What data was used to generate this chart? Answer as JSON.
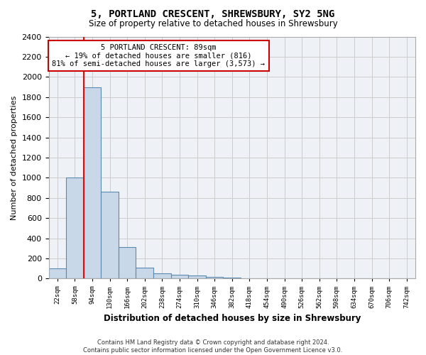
{
  "title": "5, PORTLAND CRESCENT, SHREWSBURY, SY2 5NG",
  "subtitle": "Size of property relative to detached houses in Shrewsbury",
  "xlabel": "Distribution of detached houses by size in Shrewsbury",
  "ylabel": "Number of detached properties",
  "annotation_text": "5 PORTLAND CRESCENT: 89sqm\n← 19% of detached houses are smaller (816)\n81% of semi-detached houses are larger (3,573) →",
  "footer_line1": "Contains HM Land Registry data © Crown copyright and database right 2024.",
  "footer_line2": "Contains public sector information licensed under the Open Government Licence v3.0.",
  "bin_labels": [
    "22sqm",
    "58sqm",
    "94sqm",
    "130sqm",
    "166sqm",
    "202sqm",
    "238sqm",
    "274sqm",
    "310sqm",
    "346sqm",
    "382sqm",
    "418sqm",
    "454sqm",
    "490sqm",
    "526sqm",
    "562sqm",
    "598sqm",
    "634sqm",
    "670sqm",
    "706sqm",
    "742sqm"
  ],
  "bar_values": [
    100,
    1000,
    1900,
    860,
    310,
    110,
    50,
    40,
    30,
    20,
    10,
    5,
    3,
    2,
    2,
    1,
    1,
    1,
    1,
    0,
    0
  ],
  "bar_color": "#c8d8e8",
  "bar_edge_color": "#5a8ab0",
  "red_line_x": 1.5,
  "ylim": [
    0,
    2400
  ],
  "yticks": [
    0,
    200,
    400,
    600,
    800,
    1000,
    1200,
    1400,
    1600,
    1800,
    2000,
    2200,
    2400
  ],
  "annotation_box_color": "#ffffff",
  "annotation_box_edgecolor": "#cc0000",
  "grid_color": "#cccccc",
  "background_color": "#eef2f7"
}
